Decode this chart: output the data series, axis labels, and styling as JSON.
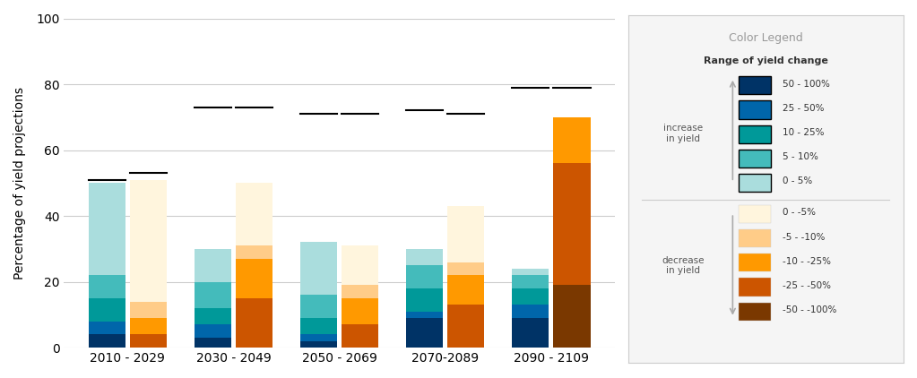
{
  "periods": [
    "2010 - 2029",
    "2030 - 2049",
    "2050 - 2069",
    "2070-2089",
    "2090 - 2109"
  ],
  "increase_segments": {
    "50_100": [
      4,
      3,
      2,
      9,
      9
    ],
    "25_50": [
      4,
      4,
      2,
      2,
      4
    ],
    "10_25": [
      7,
      5,
      5,
      7,
      5
    ],
    "5_10": [
      7,
      8,
      7,
      7,
      4
    ],
    "0_5": [
      28,
      10,
      16,
      5,
      2
    ]
  },
  "decrease_segments": {
    "0_m5": [
      37,
      19,
      12,
      17,
      0
    ],
    "m5_m10": [
      5,
      4,
      4,
      4,
      0
    ],
    "m10_m25": [
      5,
      12,
      8,
      9,
      14
    ],
    "m25_m50": [
      4,
      15,
      7,
      13,
      37
    ],
    "m50_m100": [
      0,
      0,
      0,
      0,
      19
    ]
  },
  "increase_bar_top": [
    51,
    73,
    71,
    72,
    79
  ],
  "decrease_bar_top": [
    53,
    73,
    71,
    71,
    79
  ],
  "increase_colors": [
    "#003366",
    "#0066aa",
    "#009999",
    "#44bbbb",
    "#aadddd"
  ],
  "decrease_colors": [
    "#fff5dd",
    "#ffcc88",
    "#ff9900",
    "#cc5500",
    "#7a3800"
  ],
  "bar_width": 0.35,
  "ylim": [
    0,
    100
  ],
  "yticks": [
    0,
    20,
    40,
    60,
    80,
    100
  ],
  "ylabel": "Percentage of yield projections",
  "bg_color": "#ffffff",
  "legend_title": "Color Legend",
  "legend_subtitle": "Range of yield change",
  "increase_labels": [
    "50 - 100%",
    "25 - 50%",
    "10 - 25%",
    "5 - 10%",
    "0 - 5%"
  ],
  "decrease_labels": [
    "0 - -5%",
    "-5 - -10%",
    "-10 - -25%",
    "-25 - -50%",
    "-50 - -100%"
  ],
  "increase_text": "increase\nin yield",
  "decrease_text": "decrease\nin yield"
}
